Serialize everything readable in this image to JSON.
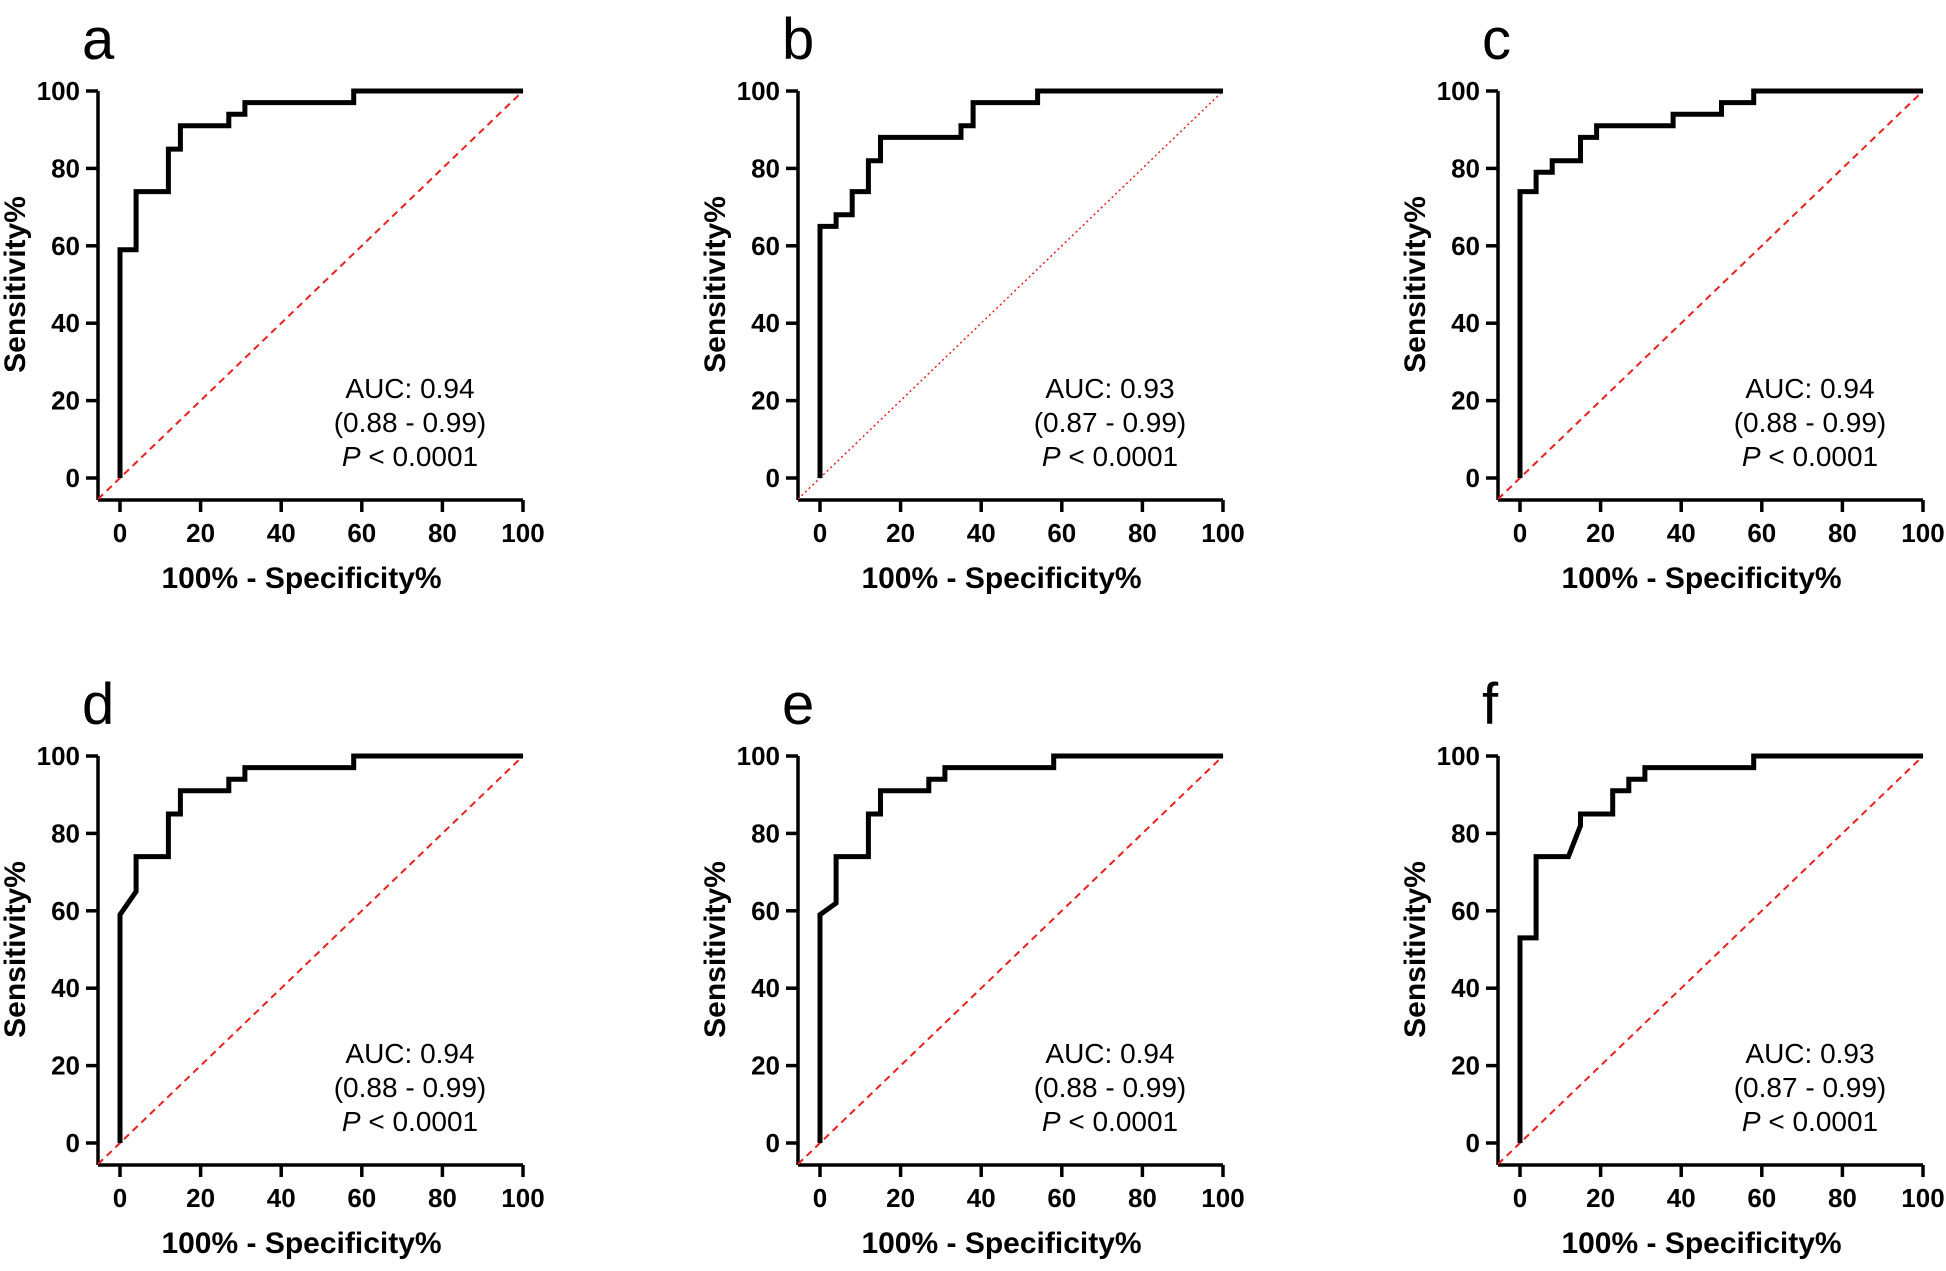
{
  "colors": {
    "roc": "#000000",
    "reference": "#e8211f",
    "axis": "#000000",
    "background": "#ffffff"
  },
  "chart_data": [
    {
      "panel": "a",
      "type": "line",
      "xlabel": "100% - Specificity%",
      "ylabel": "Sensitivity%",
      "xlim": [
        0,
        100
      ],
      "ylim": [
        0,
        100
      ],
      "xticks": [
        "0",
        "20",
        "40",
        "60",
        "80",
        "100"
      ],
      "yticks": [
        "0",
        "20",
        "40",
        "60",
        "80",
        "100"
      ],
      "grid": false,
      "legend": "none",
      "annotation": {
        "auc": "AUC: 0.94",
        "ci": "(0.88 - 0.99)",
        "p_symbol": "P",
        "p_value": " < 0.0001"
      },
      "reference_style": "dashed",
      "series": [
        {
          "x": [
            0,
            0,
            4,
            4,
            12,
            12,
            15,
            15,
            27,
            27,
            31,
            31,
            58,
            58,
            100
          ],
          "y": [
            0,
            59,
            59,
            74,
            74,
            85,
            85,
            91,
            91,
            94,
            94,
            97,
            97,
            100,
            100
          ]
        },
        {
          "x": [
            0,
            100
          ],
          "y": [
            0,
            100
          ]
        }
      ]
    },
    {
      "panel": "b",
      "type": "line",
      "xlabel": "100% - Specificity%",
      "ylabel": "Sensitivity%",
      "xlim": [
        0,
        100
      ],
      "ylim": [
        0,
        100
      ],
      "xticks": [
        "0",
        "20",
        "40",
        "60",
        "80",
        "100"
      ],
      "yticks": [
        "0",
        "20",
        "40",
        "60",
        "80",
        "100"
      ],
      "grid": false,
      "legend": "none",
      "annotation": {
        "auc": "AUC: 0.93",
        "ci": "(0.87 - 0.99)",
        "p_symbol": "P",
        "p_value": " < 0.0001"
      },
      "reference_style": "dotted",
      "series": [
        {
          "x": [
            0,
            0,
            4,
            4,
            8,
            8,
            12,
            12,
            15,
            15,
            35,
            35,
            38,
            38,
            54,
            54,
            100
          ],
          "y": [
            0,
            65,
            65,
            68,
            68,
            74,
            74,
            82,
            82,
            88,
            88,
            91,
            91,
            97,
            97,
            100,
            100
          ]
        },
        {
          "x": [
            0,
            100
          ],
          "y": [
            0,
            100
          ]
        }
      ]
    },
    {
      "panel": "c",
      "type": "line",
      "xlabel": "100% - Specificity%",
      "ylabel": "Sensitivity%",
      "xlim": [
        0,
        100
      ],
      "ylim": [
        0,
        100
      ],
      "xticks": [
        "0",
        "20",
        "40",
        "60",
        "80",
        "100"
      ],
      "yticks": [
        "0",
        "20",
        "40",
        "60",
        "80",
        "100"
      ],
      "grid": false,
      "legend": "none",
      "annotation": {
        "auc": "AUC: 0.94",
        "ci": "(0.88 - 0.99)",
        "p_symbol": "P",
        "p_value": " < 0.0001"
      },
      "reference_style": "dashed",
      "series": [
        {
          "x": [
            0,
            0,
            4,
            4,
            8,
            8,
            15,
            15,
            19,
            19,
            38,
            38,
            50,
            50,
            58,
            58,
            100
          ],
          "y": [
            0,
            74,
            74,
            79,
            79,
            82,
            82,
            88,
            88,
            91,
            91,
            94,
            94,
            97,
            97,
            100,
            100
          ]
        },
        {
          "x": [
            0,
            100
          ],
          "y": [
            0,
            100
          ]
        }
      ]
    },
    {
      "panel": "d",
      "type": "line",
      "xlabel": "100% - Specificity%",
      "ylabel": "Sensitivity%",
      "xlim": [
        0,
        100
      ],
      "ylim": [
        0,
        100
      ],
      "xticks": [
        "0",
        "20",
        "40",
        "60",
        "80",
        "100"
      ],
      "yticks": [
        "0",
        "20",
        "40",
        "60",
        "80",
        "100"
      ],
      "grid": false,
      "legend": "none",
      "annotation": {
        "auc": "AUC: 0.94",
        "ci": "(0.88 - 0.99)",
        "p_symbol": "P",
        "p_value": " < 0.0001"
      },
      "reference_style": "dashed",
      "series": [
        {
          "x": [
            0,
            0,
            4,
            4,
            12,
            12,
            15,
            15,
            27,
            27,
            31,
            31,
            58,
            58,
            100
          ],
          "y": [
            0,
            59,
            65,
            74,
            74,
            85,
            85,
            91,
            91,
            94,
            94,
            97,
            97,
            100,
            100
          ]
        },
        {
          "x": [
            0,
            100
          ],
          "y": [
            0,
            100
          ]
        }
      ]
    },
    {
      "panel": "e",
      "type": "line",
      "xlabel": "100% - Specificity%",
      "ylabel": "Sensitivity%",
      "xlim": [
        0,
        100
      ],
      "ylim": [
        0,
        100
      ],
      "xticks": [
        "0",
        "20",
        "40",
        "60",
        "80",
        "100"
      ],
      "yticks": [
        "0",
        "20",
        "40",
        "60",
        "80",
        "100"
      ],
      "grid": false,
      "legend": "none",
      "annotation": {
        "auc": "AUC: 0.94",
        "ci": "(0.88 - 0.99)",
        "p_symbol": "P",
        "p_value": " < 0.0001"
      },
      "reference_style": "dashed",
      "series": [
        {
          "x": [
            0,
            0,
            4,
            4,
            12,
            12,
            15,
            15,
            27,
            27,
            31,
            31,
            58,
            58,
            100
          ],
          "y": [
            0,
            59,
            62,
            74,
            74,
            85,
            85,
            91,
            91,
            94,
            94,
            97,
            97,
            100,
            100
          ]
        },
        {
          "x": [
            0,
            100
          ],
          "y": [
            0,
            100
          ]
        }
      ]
    },
    {
      "panel": "f",
      "type": "line",
      "xlabel": "100% - Specificity%",
      "ylabel": "Sensitivity%",
      "xlim": [
        0,
        100
      ],
      "ylim": [
        0,
        100
      ],
      "xticks": [
        "0",
        "20",
        "40",
        "60",
        "80",
        "100"
      ],
      "yticks": [
        "0",
        "20",
        "40",
        "60",
        "80",
        "100"
      ],
      "grid": false,
      "legend": "none",
      "annotation": {
        "auc": "AUC: 0.93",
        "ci": "(0.87 - 0.99)",
        "p_symbol": "P",
        "p_value": " < 0.0001"
      },
      "reference_style": "dashed",
      "series": [
        {
          "x": [
            0,
            0,
            4,
            4,
            12,
            15,
            15,
            23,
            23,
            27,
            27,
            31,
            31,
            58,
            58,
            100
          ],
          "y": [
            0,
            53,
            53,
            74,
            74,
            82,
            85,
            85,
            91,
            91,
            94,
            94,
            97,
            97,
            100,
            100
          ]
        },
        {
          "x": [
            0,
            100
          ],
          "y": [
            0,
            100
          ]
        }
      ]
    }
  ]
}
